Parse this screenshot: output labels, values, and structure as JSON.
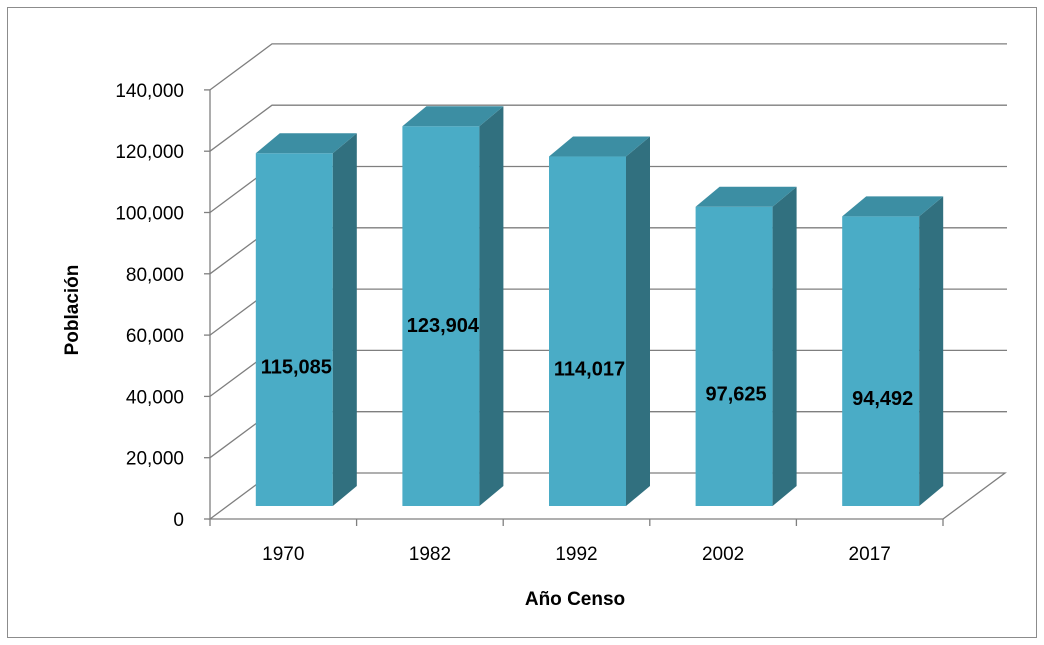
{
  "chart_data": {
    "type": "bar",
    "style": "3d-column",
    "categories": [
      "1970",
      "1982",
      "1992",
      "2002",
      "2017"
    ],
    "values": [
      115085,
      123904,
      114017,
      97625,
      94492
    ],
    "data_labels": [
      "115,085",
      "123,904",
      "114,017",
      "97,625",
      "94,492"
    ],
    "xlabel": "Año Censo",
    "ylabel": "Población",
    "ylim": [
      0,
      140000
    ],
    "yticks": [
      0,
      20000,
      40000,
      60000,
      80000,
      100000,
      120000,
      140000
    ],
    "ytick_labels": [
      "0",
      "20,000",
      "40,000",
      "60,000",
      "80,000",
      "100,000",
      "120,000",
      "140,000"
    ],
    "grid": true,
    "legend": "none",
    "colors": {
      "bar_front": "#4aacc6",
      "bar_side": "#31707f",
      "bar_top": "#3c8ea3",
      "gridline": "#7f7f7f"
    }
  }
}
